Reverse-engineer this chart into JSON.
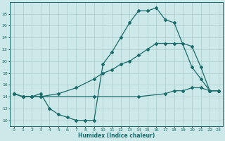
{
  "xlabel": "Humidex (Indice chaleur)",
  "bg_color": "#cce8e8",
  "grid_color": "#aacccc",
  "line_color": "#1a6b6b",
  "xlim": [
    -0.5,
    23.5
  ],
  "ylim": [
    9,
    30
  ],
  "yticks": [
    10,
    12,
    14,
    16,
    18,
    20,
    22,
    24,
    26,
    28
  ],
  "xticks": [
    0,
    1,
    2,
    3,
    4,
    5,
    6,
    7,
    8,
    9,
    10,
    11,
    12,
    13,
    14,
    15,
    16,
    17,
    18,
    19,
    20,
    21,
    22,
    23
  ],
  "line1_x": [
    0,
    1,
    2,
    3,
    4,
    5,
    6,
    7,
    8,
    9,
    10,
    11,
    12,
    13,
    14,
    15,
    16,
    17,
    18,
    20,
    21,
    22,
    23
  ],
  "line1_y": [
    14.5,
    14,
    14,
    14.5,
    12,
    11,
    10.5,
    10,
    10,
    10,
    19.5,
    21.5,
    24,
    26.5,
    28.5,
    28.5,
    29,
    27,
    26.5,
    19,
    17,
    15,
    15
  ],
  "line2_x": [
    0,
    1,
    2,
    3,
    5,
    7,
    9,
    10,
    11,
    12,
    13,
    14,
    15,
    16,
    17,
    18,
    19,
    20,
    21,
    22,
    23
  ],
  "line2_y": [
    14.5,
    14,
    14,
    14,
    14.5,
    15.5,
    17,
    18,
    18.5,
    19.5,
    20,
    21,
    22,
    23,
    23,
    23,
    23,
    22.5,
    19,
    15,
    15
  ],
  "line3_x": [
    0,
    1,
    2,
    3,
    9,
    14,
    17,
    18,
    19,
    20,
    21,
    22,
    23
  ],
  "line3_y": [
    14.5,
    14,
    14,
    14,
    14,
    14,
    14.5,
    15,
    15,
    15.5,
    15.5,
    15,
    15
  ]
}
